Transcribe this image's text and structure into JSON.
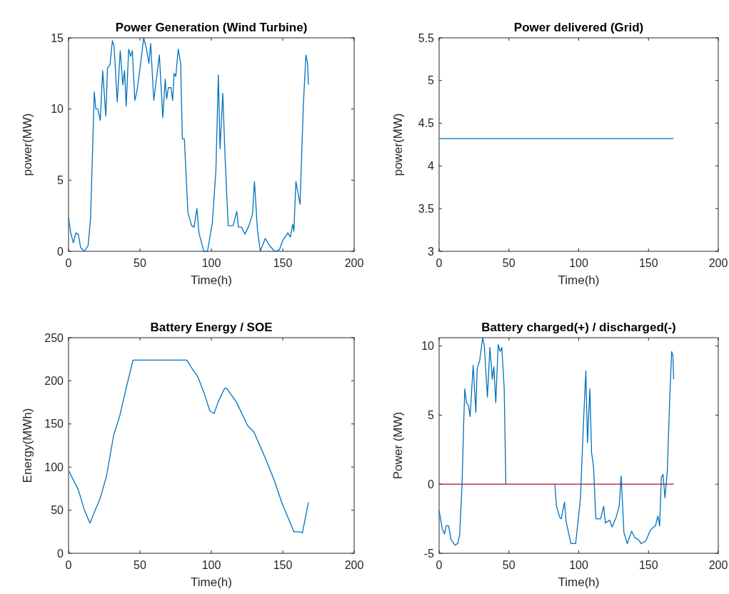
{
  "chart_data": [
    {
      "type": "line",
      "title": "Power Generation (Wind Turbine)",
      "xlabel": "Time(h)",
      "ylabel": "power(MW)",
      "xlim": [
        0,
        200
      ],
      "xticks": [
        0,
        50,
        100,
        150,
        200
      ],
      "ylim": [
        0,
        15
      ],
      "yticks": [
        0,
        5,
        10,
        15
      ],
      "grid": false,
      "series": [
        {
          "color": "#0072bd",
          "x": [
            0,
            1.7,
            3.4,
            5.1,
            6.8,
            8.5,
            11.1,
            13.7,
            15.4,
            17.1,
            18,
            19.1,
            20.5,
            22.2,
            23.9,
            26.1,
            27.3,
            29,
            30.7,
            31.9,
            34.1,
            36.2,
            38,
            39.2,
            40.4,
            42.1,
            43.5,
            44.7,
            46.4,
            47.8,
            49.5,
            52.6,
            54.6,
            56.3,
            57.5,
            59.7,
            63.6,
            66,
            67.7,
            68.7,
            69.9,
            71.7,
            72.9,
            73.9,
            75.1,
            76.8,
            78.5,
            79.7,
            81.1,
            83.6,
            86.2,
            87.9,
            89.9,
            91.3,
            94.7,
            97.3,
            100.7,
            103.2,
            104.9,
            106.1,
            108,
            109.7,
            111.8,
            115.2,
            117.8,
            119,
            121.2,
            123.5,
            126.3,
            128.8,
            130.2,
            132.3,
            134.3,
            137.7,
            140.8,
            144.2,
            147.6,
            150.2,
            153.6,
            155.3,
            157,
            157.8,
            159.2,
            160.9,
            162.1,
            164.4,
            166.2,
            167.4,
            168
          ],
          "values": [
            2.35,
            1.2,
            0.6,
            1.3,
            1.2,
            0.25,
            0,
            0.4,
            2.3,
            8,
            11.2,
            10,
            10,
            9.2,
            12.7,
            9.5,
            12.9,
            13.1,
            14.8,
            14.4,
            10.5,
            14.1,
            11.7,
            12.7,
            10.2,
            14.2,
            13.7,
            14.1,
            10.6,
            11.2,
            12.4,
            15,
            14.2,
            13.2,
            14.6,
            10.6,
            13.8,
            9.4,
            12.1,
            10.7,
            11.5,
            11.5,
            10.6,
            12.5,
            12.3,
            14.2,
            13.2,
            7.9,
            7.9,
            2.7,
            1.8,
            1.7,
            3,
            1.3,
            0,
            0,
            2,
            5.7,
            12.4,
            7.2,
            11.1,
            6.4,
            1.8,
            1.8,
            2.8,
            1.7,
            1.7,
            1.2,
            1.8,
            2.6,
            4.9,
            1.5,
            0,
            0.9,
            0.4,
            0,
            0.1,
            0.8,
            1.3,
            1,
            1.9,
            1.4,
            4.9,
            4,
            3.3,
            10.2,
            13.8,
            13.2,
            11.7
          ]
        }
      ]
    },
    {
      "type": "line",
      "title": "Power delivered (Grid)",
      "xlabel": "Time(h)",
      "ylabel": "power(MW)",
      "xlim": [
        0,
        200
      ],
      "xticks": [
        0,
        50,
        100,
        150,
        200
      ],
      "ylim": [
        3,
        5.5
      ],
      "yticks": [
        3,
        3.5,
        4,
        4.5,
        5,
        5.5
      ],
      "grid": false,
      "series": [
        {
          "color": "#0072bd",
          "x": [
            0,
            168
          ],
          "values": [
            4.32,
            4.32
          ]
        }
      ]
    },
    {
      "type": "line",
      "title": "Battery Energy / SOE",
      "xlabel": "Time(h)",
      "ylabel": "Energy(MWh)",
      "xlim": [
        0,
        200
      ],
      "xticks": [
        0,
        50,
        100,
        150,
        200
      ],
      "ylim": [
        0,
        250
      ],
      "yticks": [
        0,
        50,
        100,
        150,
        200,
        250
      ],
      "grid": false,
      "series": [
        {
          "color": "#0072bd",
          "x": [
            0,
            6.8,
            11.1,
            15,
            17.9,
            22.2,
            26.5,
            31.6,
            35.8,
            41,
            45.2,
            82.8,
            86.2,
            90.4,
            94.7,
            99,
            101.9,
            104.9,
            109.2,
            110.9,
            117.7,
            125.4,
            129.7,
            137.4,
            144.2,
            149.3,
            157.8,
            161.3,
            163.8,
            168
          ],
          "values": [
            96,
            74,
            50,
            35,
            47,
            64,
            89,
            137,
            159,
            196,
            224,
            224,
            215,
            205,
            187,
            165,
            162,
            176,
            191,
            191,
            175,
            148,
            141,
            112,
            84,
            59,
            25,
            25,
            24,
            59
          ]
        }
      ]
    },
    {
      "type": "line",
      "title": "Battery charged(+) / discharged(-)",
      "xlabel": "Time(h)",
      "ylabel": "Power (MW)",
      "xlim": [
        0,
        200
      ],
      "xticks": [
        0,
        50,
        100,
        150,
        200
      ],
      "ylim": [
        -5,
        10.6
      ],
      "yticks": [
        -5,
        0,
        5,
        10
      ],
      "grid": false,
      "series": [
        {
          "color": "#0072bd",
          "x": [
            0,
            2.2,
            3.9,
            5.1,
            6.8,
            8.5,
            11.3,
            13.3,
            14.7,
            16.4,
            17.6,
            18.4,
            19.6,
            21,
            22.2,
            24.4,
            26.3,
            27.3,
            29,
            31.2,
            32.4,
            34.6,
            36.4,
            38.1,
            39.2,
            40.6,
            42.3,
            43.7,
            44.9,
            46.6,
            47.8,
            65,
            82.9,
            84.1,
            86.4,
            87.5,
            89.8,
            91,
            94.4,
            97.8,
            101.2,
            103.4,
            105.1,
            106.3,
            108,
            109.2,
            110.6,
            112.3,
            115.7,
            117.9,
            119.1,
            122.2,
            123.9,
            126.8,
            129,
            130.4,
            132.4,
            134.8,
            137.9,
            140.4,
            142.7,
            144.7,
            148.1,
            151.5,
            155,
            156.7,
            158,
            159.2,
            160.4,
            161.8,
            163.5,
            165.2,
            166.6,
            167.5,
            168
          ],
          "values": [
            -1.9,
            -3.2,
            -3.6,
            -3,
            -3,
            -4,
            -4.4,
            -4.3,
            -3.7,
            -0.1,
            4.4,
            6.9,
            5.9,
            5.7,
            4.9,
            8.6,
            5.2,
            8.4,
            8.9,
            10.6,
            10,
            6.3,
            9.9,
            7.6,
            8.5,
            5.9,
            10.1,
            9.6,
            9.9,
            7,
            0,
            null,
            0,
            -1.6,
            -2.4,
            -2.5,
            -1.3,
            -2.7,
            -4.3,
            -4.3,
            -1.1,
            4.4,
            8.2,
            3,
            6.9,
            2.3,
            1.3,
            -2.5,
            -2.5,
            -1.6,
            -2.8,
            -2.6,
            -3.1,
            -2.4,
            -1.6,
            0.6,
            -3.5,
            -4.3,
            -3.4,
            -3.9,
            -4,
            -4.3,
            -4.1,
            -3.3,
            -3,
            -2.3,
            -3,
            0.5,
            0.7,
            -1,
            1,
            6.2,
            9.6,
            9.3,
            7.6
          ]
        },
        {
          "color": "#a2142f",
          "x": [
            0,
            168
          ],
          "values": [
            0,
            0
          ]
        }
      ]
    }
  ]
}
